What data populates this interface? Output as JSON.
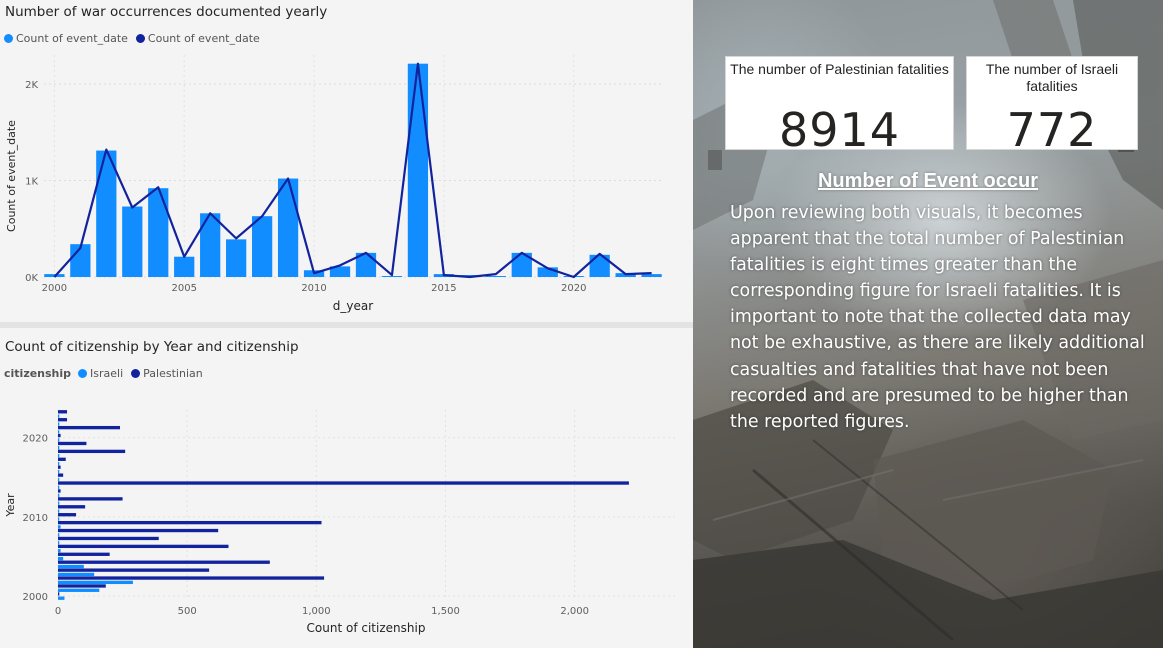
{
  "colors": {
    "israeli": "#118dff",
    "palestinian": "#12239e",
    "grid": "#d6d6d6",
    "text": "#605e5c"
  },
  "chart1": {
    "title": "Number of war occurrences documented yearly",
    "legend": [
      {
        "label": "Count of event_date",
        "color": "#118dff"
      },
      {
        "label": "Count of event_date",
        "color": "#12239e"
      }
    ],
    "chart_data": {
      "type": "bar",
      "x": [
        2000,
        2001,
        2002,
        2003,
        2004,
        2005,
        2006,
        2007,
        2008,
        2009,
        2010,
        2011,
        2012,
        2013,
        2014,
        2015,
        2016,
        2017,
        2018,
        2019,
        2020,
        2021,
        2022,
        2023
      ],
      "series": [
        {
          "name": "Count of event_date",
          "values": [
            30,
            340,
            1310,
            730,
            920,
            210,
            660,
            390,
            630,
            1020,
            70,
            110,
            250,
            10,
            2210,
            30,
            20,
            10,
            250,
            100,
            10,
            230,
            40,
            30
          ]
        },
        {
          "name": "Count of event_date",
          "values": [
            0,
            300,
            1320,
            720,
            930,
            210,
            660,
            400,
            630,
            1020,
            40,
            120,
            250,
            20,
            2210,
            20,
            0,
            30,
            250,
            90,
            0,
            240,
            30,
            40
          ]
        }
      ],
      "xlabel": "d_year",
      "ylabel": "Count of event_date",
      "xticks": [
        2000,
        2005,
        2010,
        2015,
        2020
      ],
      "xtick_labels": [
        "2000",
        "2005",
        "2010",
        "2015",
        "2020"
      ],
      "yticks": [
        0,
        1000,
        2000
      ],
      "ytick_labels": [
        "0K",
        "1K",
        "2K"
      ],
      "xlim": [
        1999.6,
        2023.4
      ],
      "ylim": [
        0,
        2300
      ],
      "grid": true,
      "legend_position": "top-left"
    }
  },
  "chart2": {
    "title": "Count of citizenship by Year and citizenship",
    "legend_title": "citizenship",
    "legend": [
      {
        "label": "Israeli",
        "color": "#118dff"
      },
      {
        "label": "Palestinian",
        "color": "#12239e"
      }
    ],
    "chart_data": {
      "type": "bar",
      "orientation": "horizontal",
      "categories": [
        2000,
        2001,
        2002,
        2003,
        2004,
        2005,
        2006,
        2007,
        2008,
        2009,
        2010,
        2011,
        2012,
        2013,
        2014,
        2015,
        2016,
        2017,
        2018,
        2019,
        2020,
        2021,
        2022,
        2023
      ],
      "series": [
        {
          "name": "Israeli",
          "values": [
            25,
            160,
            290,
            140,
            100,
            20,
            10,
            5,
            5,
            10,
            5,
            5,
            5,
            5,
            5,
            5,
            5,
            5,
            5,
            5,
            5,
            5,
            5,
            5
          ]
        },
        {
          "name": "Palestinian",
          "values": [
            5,
            185,
            1030,
            585,
            820,
            200,
            660,
            390,
            620,
            1020,
            70,
            105,
            250,
            10,
            2210,
            20,
            10,
            30,
            260,
            110,
            10,
            240,
            35,
            35
          ]
        }
      ],
      "xlabel": "Count of citizenship",
      "ylabel": "Year",
      "xticks": [
        0,
        500,
        1000,
        1500,
        2000
      ],
      "xtick_labels": [
        "0",
        "500",
        "1,000",
        "1,500",
        "2,000"
      ],
      "yticks": [
        2000,
        2010,
        2020
      ],
      "ytick_labels": [
        "2000",
        "2010",
        "2020"
      ],
      "xlim": [
        0,
        2400
      ],
      "ylim": [
        1999.5,
        2023.5
      ],
      "grid": true,
      "legend_position": "top-left"
    }
  },
  "kpis": [
    {
      "label": "The number of Palestinian fatalities",
      "value": "8914"
    },
    {
      "label": "The number of Israeli fatalities",
      "value": "772"
    }
  ],
  "event": {
    "title": "Number of Event occur ",
    "body": "Upon reviewing both visuals, it becomes apparent that the total number of Palestinian fatalities is eight times greater than the corresponding figure for Israeli fatalities. It is important to note that the collected data may not be exhaustive, as there are likely additional casualties and fatalities that have not been recorded and are presumed to be higher than the reported figures."
  }
}
